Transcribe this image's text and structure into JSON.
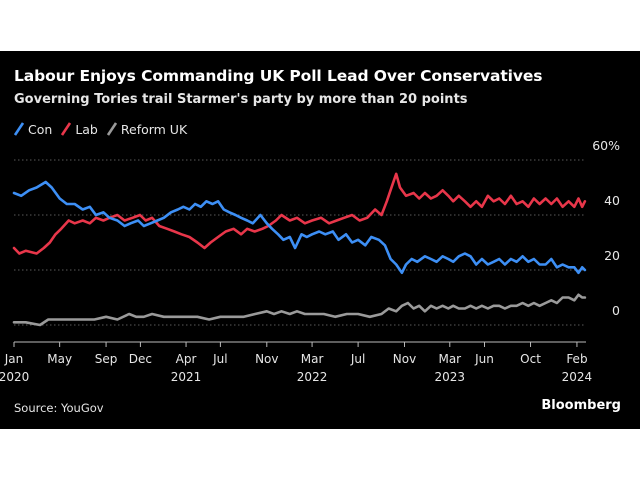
{
  "chart_data": {
    "type": "line",
    "title": "Labour Enjoys Commanding UK Poll Lead Over Conservatives",
    "subtitle": "Governing Tories trail Starmer's party by more than 20 points",
    "xlabel": "",
    "ylabel": "",
    "ylim": [
      0,
      60
    ],
    "y_unit": "%",
    "yticks": [
      0,
      20,
      40,
      60
    ],
    "ytick_labels": [
      "0",
      "20",
      "40",
      "60%"
    ],
    "x_range": [
      "2020-01-01",
      "2024-02-25"
    ],
    "xticks": [
      {
        "date": "2020-01-01",
        "label": "Jan",
        "year": "2020"
      },
      {
        "date": "2020-05-01",
        "label": "May",
        "year": ""
      },
      {
        "date": "2020-09-01",
        "label": "Sep",
        "year": ""
      },
      {
        "date": "2020-12-01",
        "label": "Dec",
        "year": ""
      },
      {
        "date": "2021-04-01",
        "label": "Apr",
        "year": "2021"
      },
      {
        "date": "2021-07-01",
        "label": "Jul",
        "year": ""
      },
      {
        "date": "2021-11-01",
        "label": "Nov",
        "year": ""
      },
      {
        "date": "2022-03-01",
        "label": "Mar",
        "year": "2022"
      },
      {
        "date": "2022-07-01",
        "label": "Jul",
        "year": ""
      },
      {
        "date": "2022-11-01",
        "label": "Nov",
        "year": ""
      },
      {
        "date": "2023-03-01",
        "label": "Mar",
        "year": "2023"
      },
      {
        "date": "2023-06-01",
        "label": "Jun",
        "year": ""
      },
      {
        "date": "2023-10-01",
        "label": "Oct",
        "year": ""
      },
      {
        "date": "2024-02-01",
        "label": "Feb",
        "year": "2024"
      }
    ],
    "grid": "horizontal",
    "legend_position": "top-left",
    "series": [
      {
        "name": "Con",
        "color": "#3d8ff5",
        "points": [
          [
            "2020-01-01",
            48
          ],
          [
            "2020-01-20",
            47
          ],
          [
            "2020-02-10",
            49
          ],
          [
            "2020-03-01",
            50
          ],
          [
            "2020-03-25",
            52
          ],
          [
            "2020-04-10",
            50
          ],
          [
            "2020-05-01",
            46
          ],
          [
            "2020-05-20",
            44
          ],
          [
            "2020-06-10",
            44
          ],
          [
            "2020-07-01",
            42
          ],
          [
            "2020-07-20",
            43
          ],
          [
            "2020-08-05",
            40
          ],
          [
            "2020-08-25",
            41
          ],
          [
            "2020-09-10",
            39
          ],
          [
            "2020-10-01",
            38
          ],
          [
            "2020-10-20",
            36
          ],
          [
            "2020-11-05",
            37
          ],
          [
            "2020-11-25",
            38
          ],
          [
            "2020-12-10",
            36
          ],
          [
            "2020-12-28",
            37
          ],
          [
            "2021-01-15",
            38
          ],
          [
            "2021-02-01",
            39
          ],
          [
            "2021-02-20",
            41
          ],
          [
            "2021-03-10",
            42
          ],
          [
            "2021-03-25",
            43
          ],
          [
            "2021-04-10",
            42
          ],
          [
            "2021-04-25",
            44
          ],
          [
            "2021-05-10",
            43
          ],
          [
            "2021-05-25",
            45
          ],
          [
            "2021-06-10",
            44
          ],
          [
            "2021-06-25",
            45
          ],
          [
            "2021-07-10",
            42
          ],
          [
            "2021-07-25",
            41
          ],
          [
            "2021-08-10",
            40
          ],
          [
            "2021-08-25",
            39
          ],
          [
            "2021-09-10",
            38
          ],
          [
            "2021-09-25",
            37
          ],
          [
            "2021-10-15",
            40
          ],
          [
            "2021-11-01",
            37
          ],
          [
            "2021-11-15",
            35
          ],
          [
            "2021-12-01",
            33
          ],
          [
            "2021-12-15",
            31
          ],
          [
            "2022-01-01",
            32
          ],
          [
            "2022-01-15",
            28
          ],
          [
            "2022-02-01",
            33
          ],
          [
            "2022-02-15",
            32
          ],
          [
            "2022-03-01",
            33
          ],
          [
            "2022-03-20",
            34
          ],
          [
            "2022-04-05",
            33
          ],
          [
            "2022-04-25",
            34
          ],
          [
            "2022-05-10",
            31
          ],
          [
            "2022-05-30",
            33
          ],
          [
            "2022-06-15",
            30
          ],
          [
            "2022-07-01",
            31
          ],
          [
            "2022-07-20",
            29
          ],
          [
            "2022-08-05",
            32
          ],
          [
            "2022-08-25",
            31
          ],
          [
            "2022-09-10",
            29
          ],
          [
            "2022-09-25",
            24
          ],
          [
            "2022-10-10",
            22
          ],
          [
            "2022-10-25",
            19
          ],
          [
            "2022-11-05",
            22
          ],
          [
            "2022-11-20",
            24
          ],
          [
            "2022-12-05",
            23
          ],
          [
            "2022-12-25",
            25
          ],
          [
            "2023-01-10",
            24
          ],
          [
            "2023-01-25",
            23
          ],
          [
            "2023-02-10",
            25
          ],
          [
            "2023-02-25",
            24
          ],
          [
            "2023-03-10",
            23
          ],
          [
            "2023-03-25",
            25
          ],
          [
            "2023-04-10",
            26
          ],
          [
            "2023-04-25",
            25
          ],
          [
            "2023-05-10",
            22
          ],
          [
            "2023-05-25",
            24
          ],
          [
            "2023-06-10",
            22
          ],
          [
            "2023-06-25",
            23
          ],
          [
            "2023-07-10",
            24
          ],
          [
            "2023-07-25",
            22
          ],
          [
            "2023-08-10",
            24
          ],
          [
            "2023-08-25",
            23
          ],
          [
            "2023-09-10",
            25
          ],
          [
            "2023-09-25",
            23
          ],
          [
            "2023-10-10",
            24
          ],
          [
            "2023-10-25",
            22
          ],
          [
            "2023-11-10",
            22
          ],
          [
            "2023-11-25",
            24
          ],
          [
            "2023-12-10",
            21
          ],
          [
            "2023-12-25",
            22
          ],
          [
            "2024-01-10",
            21
          ],
          [
            "2024-01-25",
            21
          ],
          [
            "2024-02-05",
            19
          ],
          [
            "2024-02-15",
            21
          ],
          [
            "2024-02-22",
            20
          ]
        ]
      },
      {
        "name": "Lab",
        "color": "#e8364a",
        "points": [
          [
            "2020-01-01",
            28
          ],
          [
            "2020-01-15",
            26
          ],
          [
            "2020-02-01",
            27
          ],
          [
            "2020-03-01",
            26
          ],
          [
            "2020-03-20",
            28
          ],
          [
            "2020-04-05",
            30
          ],
          [
            "2020-04-20",
            33
          ],
          [
            "2020-05-05",
            35
          ],
          [
            "2020-05-25",
            38
          ],
          [
            "2020-06-10",
            37
          ],
          [
            "2020-07-01",
            38
          ],
          [
            "2020-07-20",
            37
          ],
          [
            "2020-08-05",
            39
          ],
          [
            "2020-08-25",
            38
          ],
          [
            "2020-09-10",
            39
          ],
          [
            "2020-10-01",
            40
          ],
          [
            "2020-10-20",
            38
          ],
          [
            "2020-11-10",
            39
          ],
          [
            "2020-11-30",
            40
          ],
          [
            "2020-12-15",
            38
          ],
          [
            "2021-01-01",
            39
          ],
          [
            "2021-01-20",
            36
          ],
          [
            "2021-02-10",
            35
          ],
          [
            "2021-03-01",
            34
          ],
          [
            "2021-03-20",
            33
          ],
          [
            "2021-04-10",
            32
          ],
          [
            "2021-05-01",
            30
          ],
          [
            "2021-05-20",
            28
          ],
          [
            "2021-06-05",
            30
          ],
          [
            "2021-06-25",
            32
          ],
          [
            "2021-07-15",
            34
          ],
          [
            "2021-08-05",
            35
          ],
          [
            "2021-08-25",
            33
          ],
          [
            "2021-09-10",
            35
          ],
          [
            "2021-09-30",
            34
          ],
          [
            "2021-10-20",
            35
          ],
          [
            "2021-11-05",
            36
          ],
          [
            "2021-11-25",
            38
          ],
          [
            "2021-12-10",
            40
          ],
          [
            "2022-01-01",
            38
          ],
          [
            "2022-01-20",
            39
          ],
          [
            "2022-02-10",
            37
          ],
          [
            "2022-03-01",
            38
          ],
          [
            "2022-03-25",
            39
          ],
          [
            "2022-04-15",
            37
          ],
          [
            "2022-05-05",
            38
          ],
          [
            "2022-05-25",
            39
          ],
          [
            "2022-06-15",
            40
          ],
          [
            "2022-07-05",
            38
          ],
          [
            "2022-07-25",
            39
          ],
          [
            "2022-08-15",
            42
          ],
          [
            "2022-09-01",
            40
          ],
          [
            "2022-09-15",
            45
          ],
          [
            "2022-09-30",
            51
          ],
          [
            "2022-10-10",
            55
          ],
          [
            "2022-10-20",
            50
          ],
          [
            "2022-11-05",
            47
          ],
          [
            "2022-11-25",
            48
          ],
          [
            "2022-12-10",
            46
          ],
          [
            "2022-12-25",
            48
          ],
          [
            "2023-01-10",
            46
          ],
          [
            "2023-01-25",
            47
          ],
          [
            "2023-02-10",
            49
          ],
          [
            "2023-02-25",
            47
          ],
          [
            "2023-03-10",
            45
          ],
          [
            "2023-03-25",
            47
          ],
          [
            "2023-04-10",
            45
          ],
          [
            "2023-04-25",
            43
          ],
          [
            "2023-05-10",
            45
          ],
          [
            "2023-05-25",
            43
          ],
          [
            "2023-06-10",
            47
          ],
          [
            "2023-06-25",
            45
          ],
          [
            "2023-07-10",
            46
          ],
          [
            "2023-07-25",
            44
          ],
          [
            "2023-08-10",
            47
          ],
          [
            "2023-08-25",
            44
          ],
          [
            "2023-09-10",
            45
          ],
          [
            "2023-09-25",
            43
          ],
          [
            "2023-10-10",
            46
          ],
          [
            "2023-10-25",
            44
          ],
          [
            "2023-11-10",
            46
          ],
          [
            "2023-11-25",
            44
          ],
          [
            "2023-12-10",
            46
          ],
          [
            "2023-12-25",
            43
          ],
          [
            "2024-01-10",
            45
          ],
          [
            "2024-01-25",
            43
          ],
          [
            "2024-02-05",
            46
          ],
          [
            "2024-02-15",
            43
          ],
          [
            "2024-02-22",
            45
          ]
        ]
      },
      {
        "name": "Reform UK",
        "color": "#9a9a9a",
        "points": [
          [
            "2020-01-01",
            1
          ],
          [
            "2020-02-01",
            1
          ],
          [
            "2020-03-10",
            0
          ],
          [
            "2020-04-01",
            2
          ],
          [
            "2020-05-01",
            2
          ],
          [
            "2020-06-01",
            2
          ],
          [
            "2020-07-01",
            2
          ],
          [
            "2020-08-01",
            2
          ],
          [
            "2020-09-01",
            3
          ],
          [
            "2020-10-01",
            2
          ],
          [
            "2020-11-01",
            4
          ],
          [
            "2020-11-20",
            3
          ],
          [
            "2020-12-10",
            3
          ],
          [
            "2021-01-01",
            4
          ],
          [
            "2021-02-01",
            3
          ],
          [
            "2021-03-01",
            3
          ],
          [
            "2021-04-01",
            3
          ],
          [
            "2021-05-01",
            3
          ],
          [
            "2021-06-01",
            2
          ],
          [
            "2021-07-01",
            3
          ],
          [
            "2021-08-01",
            3
          ],
          [
            "2021-09-01",
            3
          ],
          [
            "2021-10-01",
            4
          ],
          [
            "2021-11-01",
            5
          ],
          [
            "2021-11-20",
            4
          ],
          [
            "2021-12-10",
            5
          ],
          [
            "2022-01-01",
            4
          ],
          [
            "2022-01-20",
            5
          ],
          [
            "2022-02-10",
            4
          ],
          [
            "2022-03-01",
            4
          ],
          [
            "2022-04-01",
            4
          ],
          [
            "2022-05-01",
            3
          ],
          [
            "2022-06-01",
            4
          ],
          [
            "2022-07-01",
            4
          ],
          [
            "2022-08-01",
            3
          ],
          [
            "2022-09-01",
            4
          ],
          [
            "2022-09-20",
            6
          ],
          [
            "2022-10-10",
            5
          ],
          [
            "2022-10-25",
            7
          ],
          [
            "2022-11-10",
            8
          ],
          [
            "2022-11-25",
            6
          ],
          [
            "2022-12-10",
            7
          ],
          [
            "2022-12-25",
            5
          ],
          [
            "2023-01-10",
            7
          ],
          [
            "2023-01-25",
            6
          ],
          [
            "2023-02-10",
            7
          ],
          [
            "2023-02-25",
            6
          ],
          [
            "2023-03-10",
            7
          ],
          [
            "2023-03-25",
            6
          ],
          [
            "2023-04-10",
            6
          ],
          [
            "2023-04-25",
            7
          ],
          [
            "2023-05-10",
            6
          ],
          [
            "2023-05-25",
            7
          ],
          [
            "2023-06-10",
            6
          ],
          [
            "2023-06-25",
            7
          ],
          [
            "2023-07-10",
            7
          ],
          [
            "2023-07-25",
            6
          ],
          [
            "2023-08-10",
            7
          ],
          [
            "2023-08-25",
            7
          ],
          [
            "2023-09-10",
            8
          ],
          [
            "2023-09-25",
            7
          ],
          [
            "2023-10-10",
            8
          ],
          [
            "2023-10-25",
            7
          ],
          [
            "2023-11-10",
            8
          ],
          [
            "2023-11-25",
            9
          ],
          [
            "2023-12-10",
            8
          ],
          [
            "2023-12-25",
            10
          ],
          [
            "2024-01-10",
            10
          ],
          [
            "2024-01-25",
            9
          ],
          [
            "2024-02-05",
            11
          ],
          [
            "2024-02-15",
            10
          ],
          [
            "2024-02-22",
            10
          ]
        ]
      }
    ]
  },
  "footer": {
    "source": "Source: YouGov",
    "brand": "Bloomberg"
  },
  "colors": {
    "background": "#000000",
    "grid": "#5a5a5a",
    "text": "#e6e6e6"
  }
}
